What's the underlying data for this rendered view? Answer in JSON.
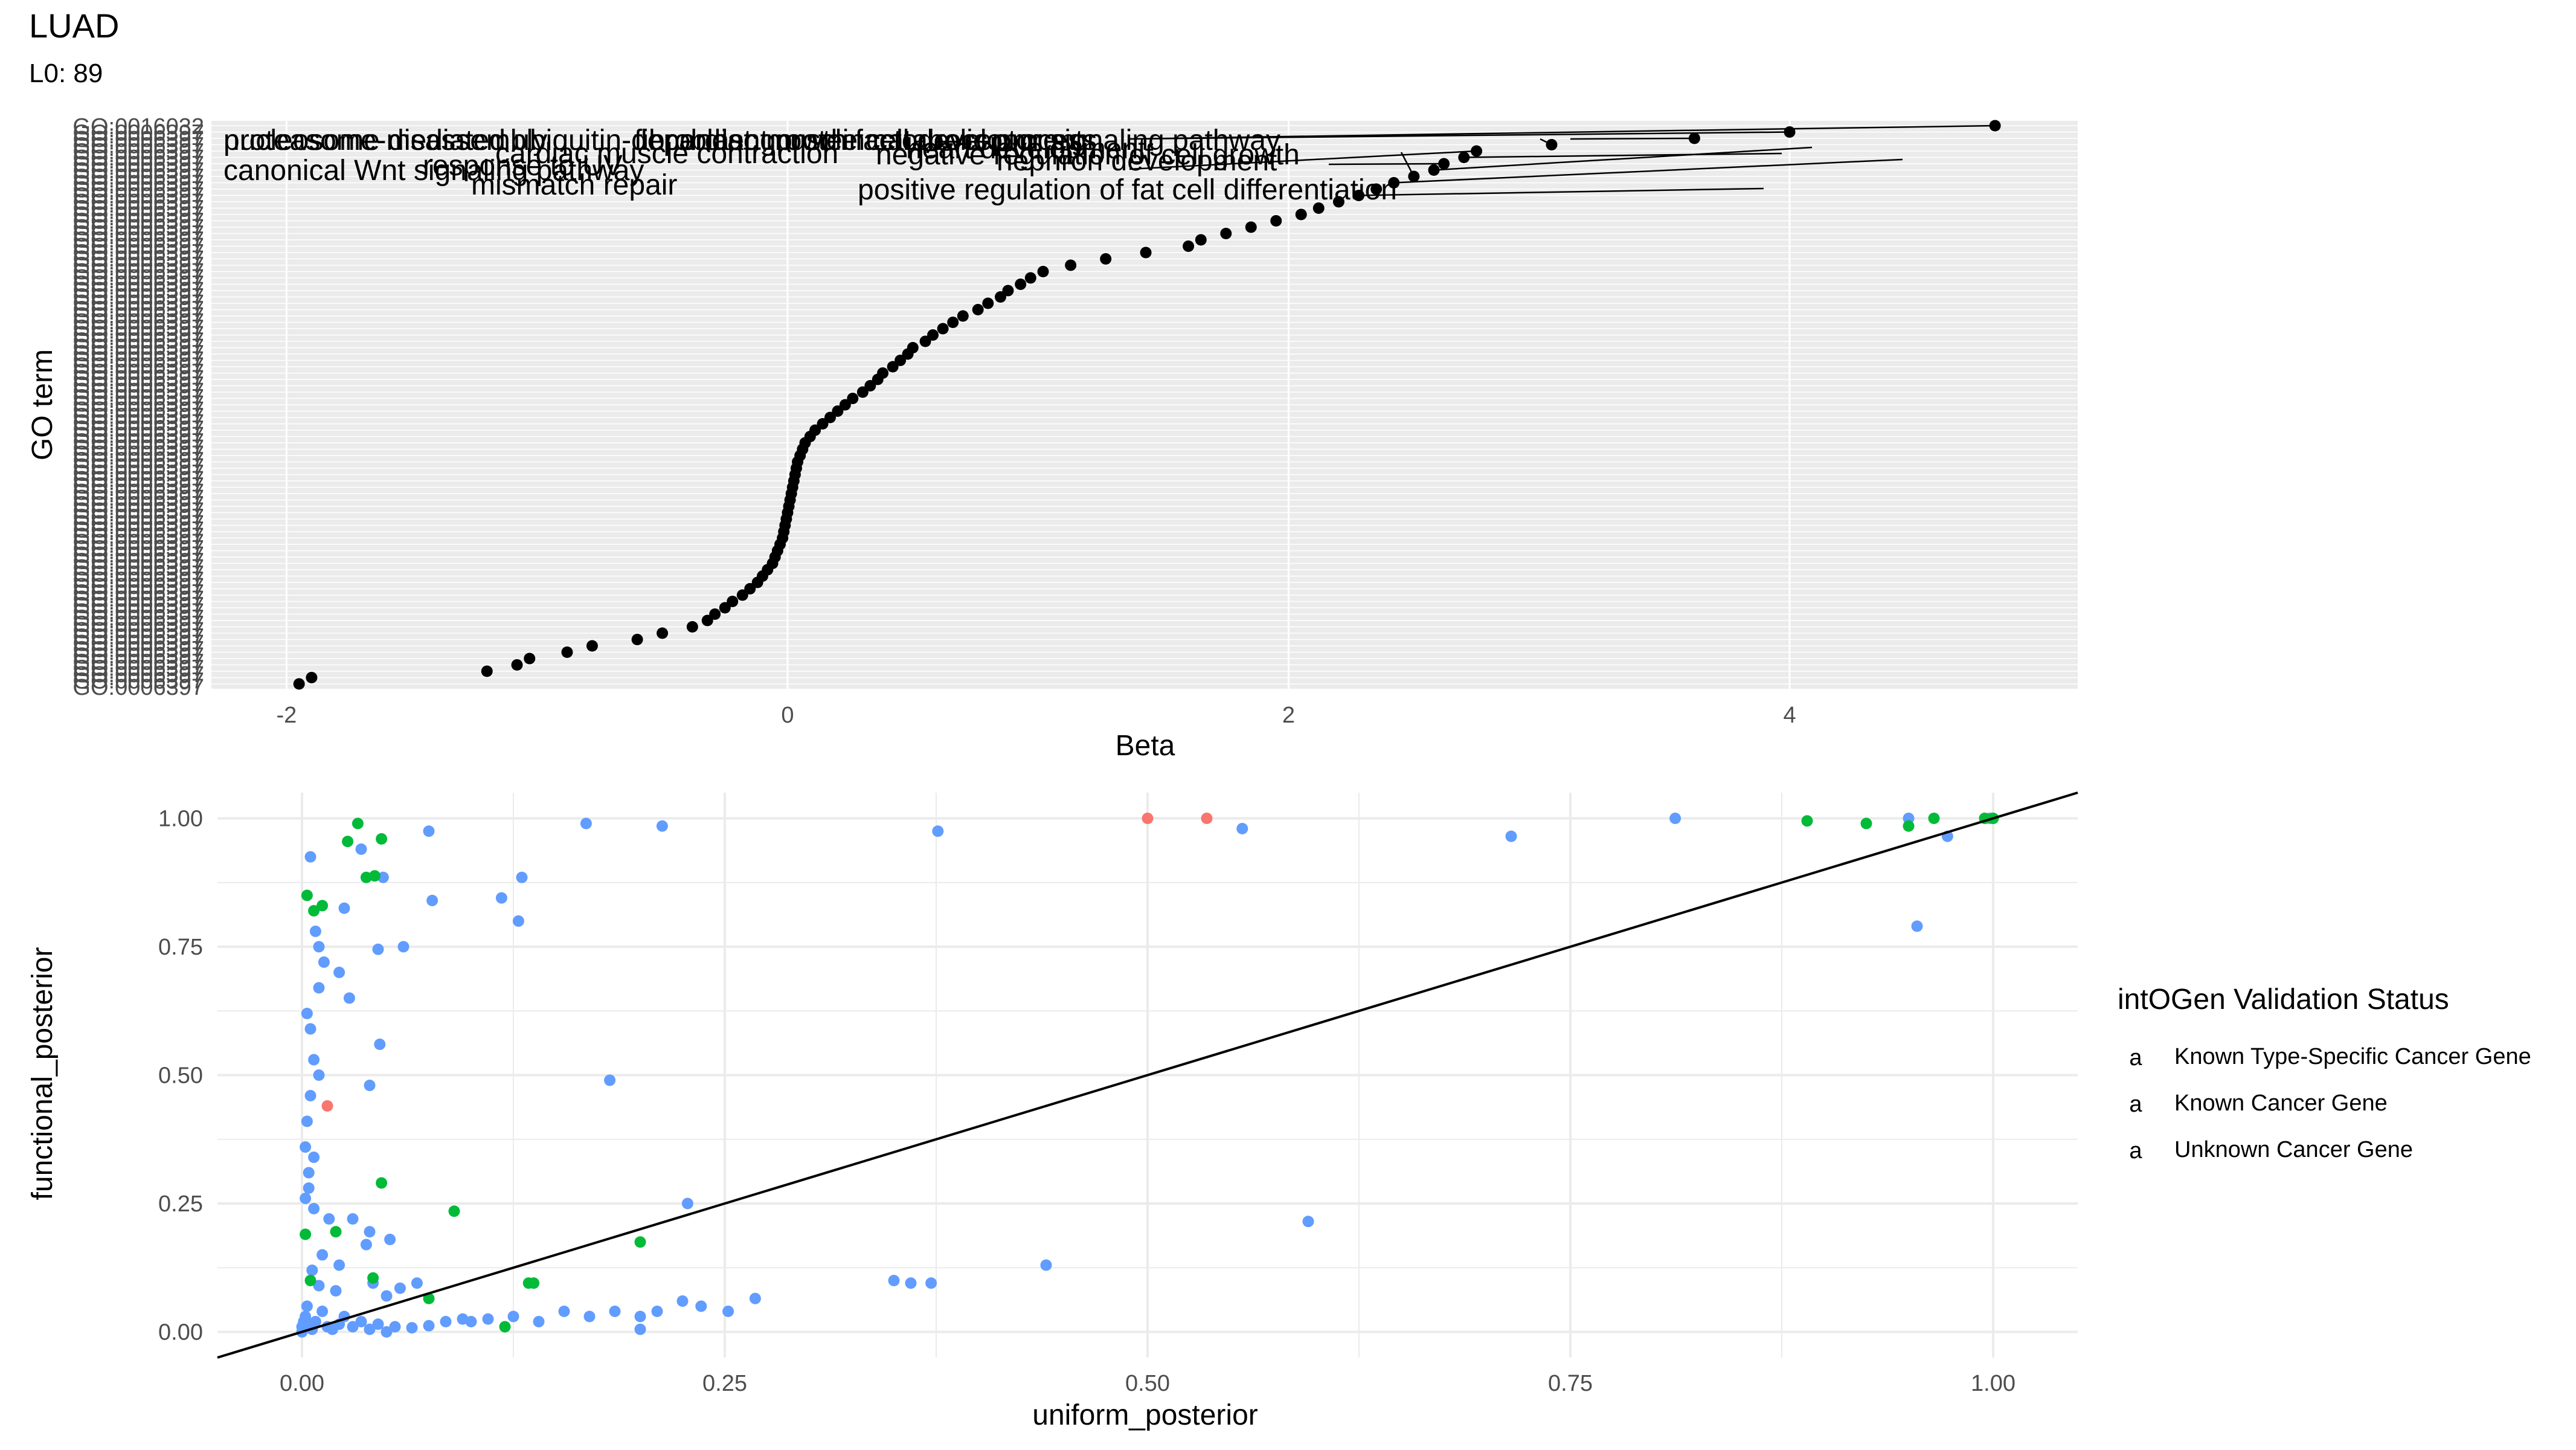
{
  "header": {
    "title": "LUAD",
    "subtitle": "L0: 89"
  },
  "chart_data": [
    {
      "type": "scatter",
      "xlabel": "Beta",
      "ylabel": "GO term",
      "xlim": [
        -2.3,
        5.15
      ],
      "x_ticks": [
        -2,
        0,
        2,
        4
      ],
      "x_tick_labels": [
        "-2",
        "0",
        "2",
        "4"
      ],
      "y_tick_labels_note": "overlapping GO identifiers (GO:00xxxxx), illegible",
      "y_tick_labels_first": "GO:0006397",
      "y_tick_labels_last": "GO:0016032",
      "grid": true,
      "point_color": "#000000",
      "beta_values": [
        -1.95,
        -1.9,
        -1.2,
        -1.08,
        -1.03,
        -0.88,
        -0.78,
        -0.6,
        -0.5,
        -0.38,
        -0.32,
        -0.29,
        -0.25,
        -0.22,
        -0.18,
        -0.15,
        -0.12,
        -0.1,
        -0.08,
        -0.06,
        -0.05,
        -0.04,
        -0.03,
        -0.02,
        -0.015,
        -0.01,
        -0.005,
        0.0,
        0.005,
        0.01,
        0.015,
        0.02,
        0.025,
        0.03,
        0.035,
        0.04,
        0.05,
        0.06,
        0.07,
        0.09,
        0.11,
        0.14,
        0.17,
        0.2,
        0.23,
        0.26,
        0.3,
        0.33,
        0.36,
        0.38,
        0.42,
        0.45,
        0.48,
        0.5,
        0.55,
        0.58,
        0.62,
        0.66,
        0.7,
        0.76,
        0.8,
        0.85,
        0.88,
        0.93,
        0.97,
        1.02,
        1.13,
        1.27,
        1.43,
        1.6,
        1.65,
        1.75,
        1.85,
        1.95,
        2.05,
        2.12,
        2.2,
        2.28,
        2.35,
        2.42,
        2.5,
        2.58,
        2.62,
        2.7,
        2.75,
        3.05,
        3.62,
        4.0,
        4.82
      ],
      "annotations": [
        "proteasome-mediated ubiquitin-dependent protein catabolic process",
        "nucleosome disassembly",
        "cardiac muscle cell development",
        "fibroblast growth factor receptor signaling pathway",
        "canonical Wnt signaling pathway",
        "negative regulation of cell growth",
        "response to UV",
        "heart development",
        "cardiac muscle contraction",
        "nephron development",
        "mismatch repair",
        "positive regulation of fat cell differentiation"
      ]
    },
    {
      "type": "scatter",
      "xlabel": "uniform_posterior",
      "ylabel": "functional_posterior",
      "xlim": [
        -0.05,
        1.05
      ],
      "ylim": [
        -0.05,
        1.05
      ],
      "x_ticks": [
        0.0,
        0.25,
        0.5,
        0.75,
        1.0
      ],
      "x_tick_labels": [
        "0.00",
        "0.25",
        "0.50",
        "0.75",
        "1.00"
      ],
      "y_ticks": [
        0.0,
        0.25,
        0.5,
        0.75,
        1.0
      ],
      "y_tick_labels": [
        "0.00",
        "0.25",
        "0.50",
        "0.75",
        "1.00"
      ],
      "reference_line": "y = x",
      "grid": true,
      "legend": {
        "title": "intOGen Validation Status",
        "placement": "right",
        "key_glyph": "a",
        "entries": [
          {
            "label": "Known Type-Specific Cancer Gene",
            "color": "#F8766D"
          },
          {
            "label": "Known Cancer Gene",
            "color": "#00BA38"
          },
          {
            "label": "Unknown Cancer Gene",
            "color": "#619CFF"
          }
        ]
      },
      "series": [
        {
          "name": "Known Type-Specific Cancer Gene",
          "points": [
            [
              0.5,
              1.0
            ],
            [
              0.535,
              1.0
            ],
            [
              0.015,
              0.44
            ]
          ]
        },
        {
          "name": "Known Cancer Gene",
          "points": [
            [
              0.033,
              0.99
            ],
            [
              0.027,
              0.955
            ],
            [
              0.047,
              0.96
            ],
            [
              0.038,
              0.885
            ],
            [
              0.043,
              0.888
            ],
            [
              0.003,
              0.85
            ],
            [
              0.007,
              0.82
            ],
            [
              0.012,
              0.83
            ],
            [
              0.047,
              0.29
            ],
            [
              0.09,
              0.235
            ],
            [
              0.02,
              0.195
            ],
            [
              0.2,
              0.175
            ],
            [
              0.134,
              0.095
            ],
            [
              0.137,
              0.095
            ],
            [
              0.042,
              0.105
            ],
            [
              0.075,
              0.065
            ],
            [
              0.12,
              0.01
            ],
            [
              0.002,
              0.19
            ],
            [
              0.005,
              0.1
            ],
            [
              0.89,
              0.995
            ],
            [
              0.925,
              0.99
            ],
            [
              0.95,
              0.985
            ],
            [
              0.965,
              1.0
            ],
            [
              0.995,
              1.0
            ],
            [
              1.0,
              1.0
            ]
          ]
        },
        {
          "name": "Unknown Cancer Gene",
          "points": [
            [
              0.168,
              0.99
            ],
            [
              0.213,
              0.985
            ],
            [
              0.075,
              0.975
            ],
            [
              0.376,
              0.975
            ],
            [
              0.556,
              0.98
            ],
            [
              0.715,
              0.965
            ],
            [
              0.812,
              1.0
            ],
            [
              0.95,
              1.0
            ],
            [
              0.973,
              0.965
            ],
            [
              0.955,
              0.79
            ],
            [
              0.998,
              1.0
            ],
            [
              0.005,
              0.925
            ],
            [
              0.035,
              0.94
            ],
            [
              0.048,
              0.885
            ],
            [
              0.025,
              0.825
            ],
            [
              0.077,
              0.84
            ],
            [
              0.118,
              0.845
            ],
            [
              0.13,
              0.885
            ],
            [
              0.128,
              0.8
            ],
            [
              0.008,
              0.78
            ],
            [
              0.01,
              0.75
            ],
            [
              0.013,
              0.72
            ],
            [
              0.022,
              0.7
            ],
            [
              0.045,
              0.745
            ],
            [
              0.06,
              0.75
            ],
            [
              0.01,
              0.67
            ],
            [
              0.028,
              0.65
            ],
            [
              0.003,
              0.62
            ],
            [
              0.005,
              0.59
            ],
            [
              0.046,
              0.56
            ],
            [
              0.007,
              0.53
            ],
            [
              0.01,
              0.5
            ],
            [
              0.005,
              0.46
            ],
            [
              0.04,
              0.48
            ],
            [
              0.182,
              0.49
            ],
            [
              0.003,
              0.41
            ],
            [
              0.002,
              0.36
            ],
            [
              0.007,
              0.34
            ],
            [
              0.004,
              0.31
            ],
            [
              0.004,
              0.28
            ],
            [
              0.002,
              0.26
            ],
            [
              0.007,
              0.24
            ],
            [
              0.016,
              0.22
            ],
            [
              0.03,
              0.22
            ],
            [
              0.04,
              0.195
            ],
            [
              0.052,
              0.18
            ],
            [
              0.038,
              0.17
            ],
            [
              0.012,
              0.15
            ],
            [
              0.006,
              0.12
            ],
            [
              0.022,
              0.13
            ],
            [
              0.042,
              0.095
            ],
            [
              0.058,
              0.085
            ],
            [
              0.068,
              0.095
            ],
            [
              0.01,
              0.09
            ],
            [
              0.02,
              0.08
            ],
            [
              0.05,
              0.07
            ],
            [
              0.003,
              0.05
            ],
            [
              0.012,
              0.04
            ],
            [
              0.025,
              0.03
            ],
            [
              0.035,
              0.02
            ],
            [
              0.045,
              0.015
            ],
            [
              0.055,
              0.01
            ],
            [
              0.065,
              0.008
            ],
            [
              0.075,
              0.012
            ],
            [
              0.085,
              0.02
            ],
            [
              0.095,
              0.025
            ],
            [
              0.1,
              0.02
            ],
            [
              0.11,
              0.025
            ],
            [
              0.125,
              0.03
            ],
            [
              0.14,
              0.02
            ],
            [
              0.155,
              0.04
            ],
            [
              0.17,
              0.03
            ],
            [
              0.185,
              0.04
            ],
            [
              0.2,
              0.03
            ],
            [
              0.21,
              0.04
            ],
            [
              0.225,
              0.06
            ],
            [
              0.236,
              0.05
            ],
            [
              0.252,
              0.04
            ],
            [
              0.268,
              0.065
            ],
            [
              0.2,
              0.005
            ],
            [
              0.228,
              0.25
            ],
            [
              0.35,
              0.1
            ],
            [
              0.36,
              0.095
            ],
            [
              0.372,
              0.095
            ],
            [
              0.44,
              0.13
            ],
            [
              0.595,
              0.215
            ],
            [
              0.0,
              0.0
            ],
            [
              0.0,
              0.01
            ],
            [
              0.001,
              0.02
            ],
            [
              0.002,
              0.03
            ],
            [
              0.004,
              0.015
            ],
            [
              0.006,
              0.005
            ],
            [
              0.008,
              0.02
            ],
            [
              0.015,
              0.01
            ],
            [
              0.018,
              0.005
            ],
            [
              0.022,
              0.015
            ],
            [
              0.03,
              0.01
            ],
            [
              0.04,
              0.005
            ],
            [
              0.05,
              0.0
            ]
          ]
        }
      ]
    }
  ]
}
